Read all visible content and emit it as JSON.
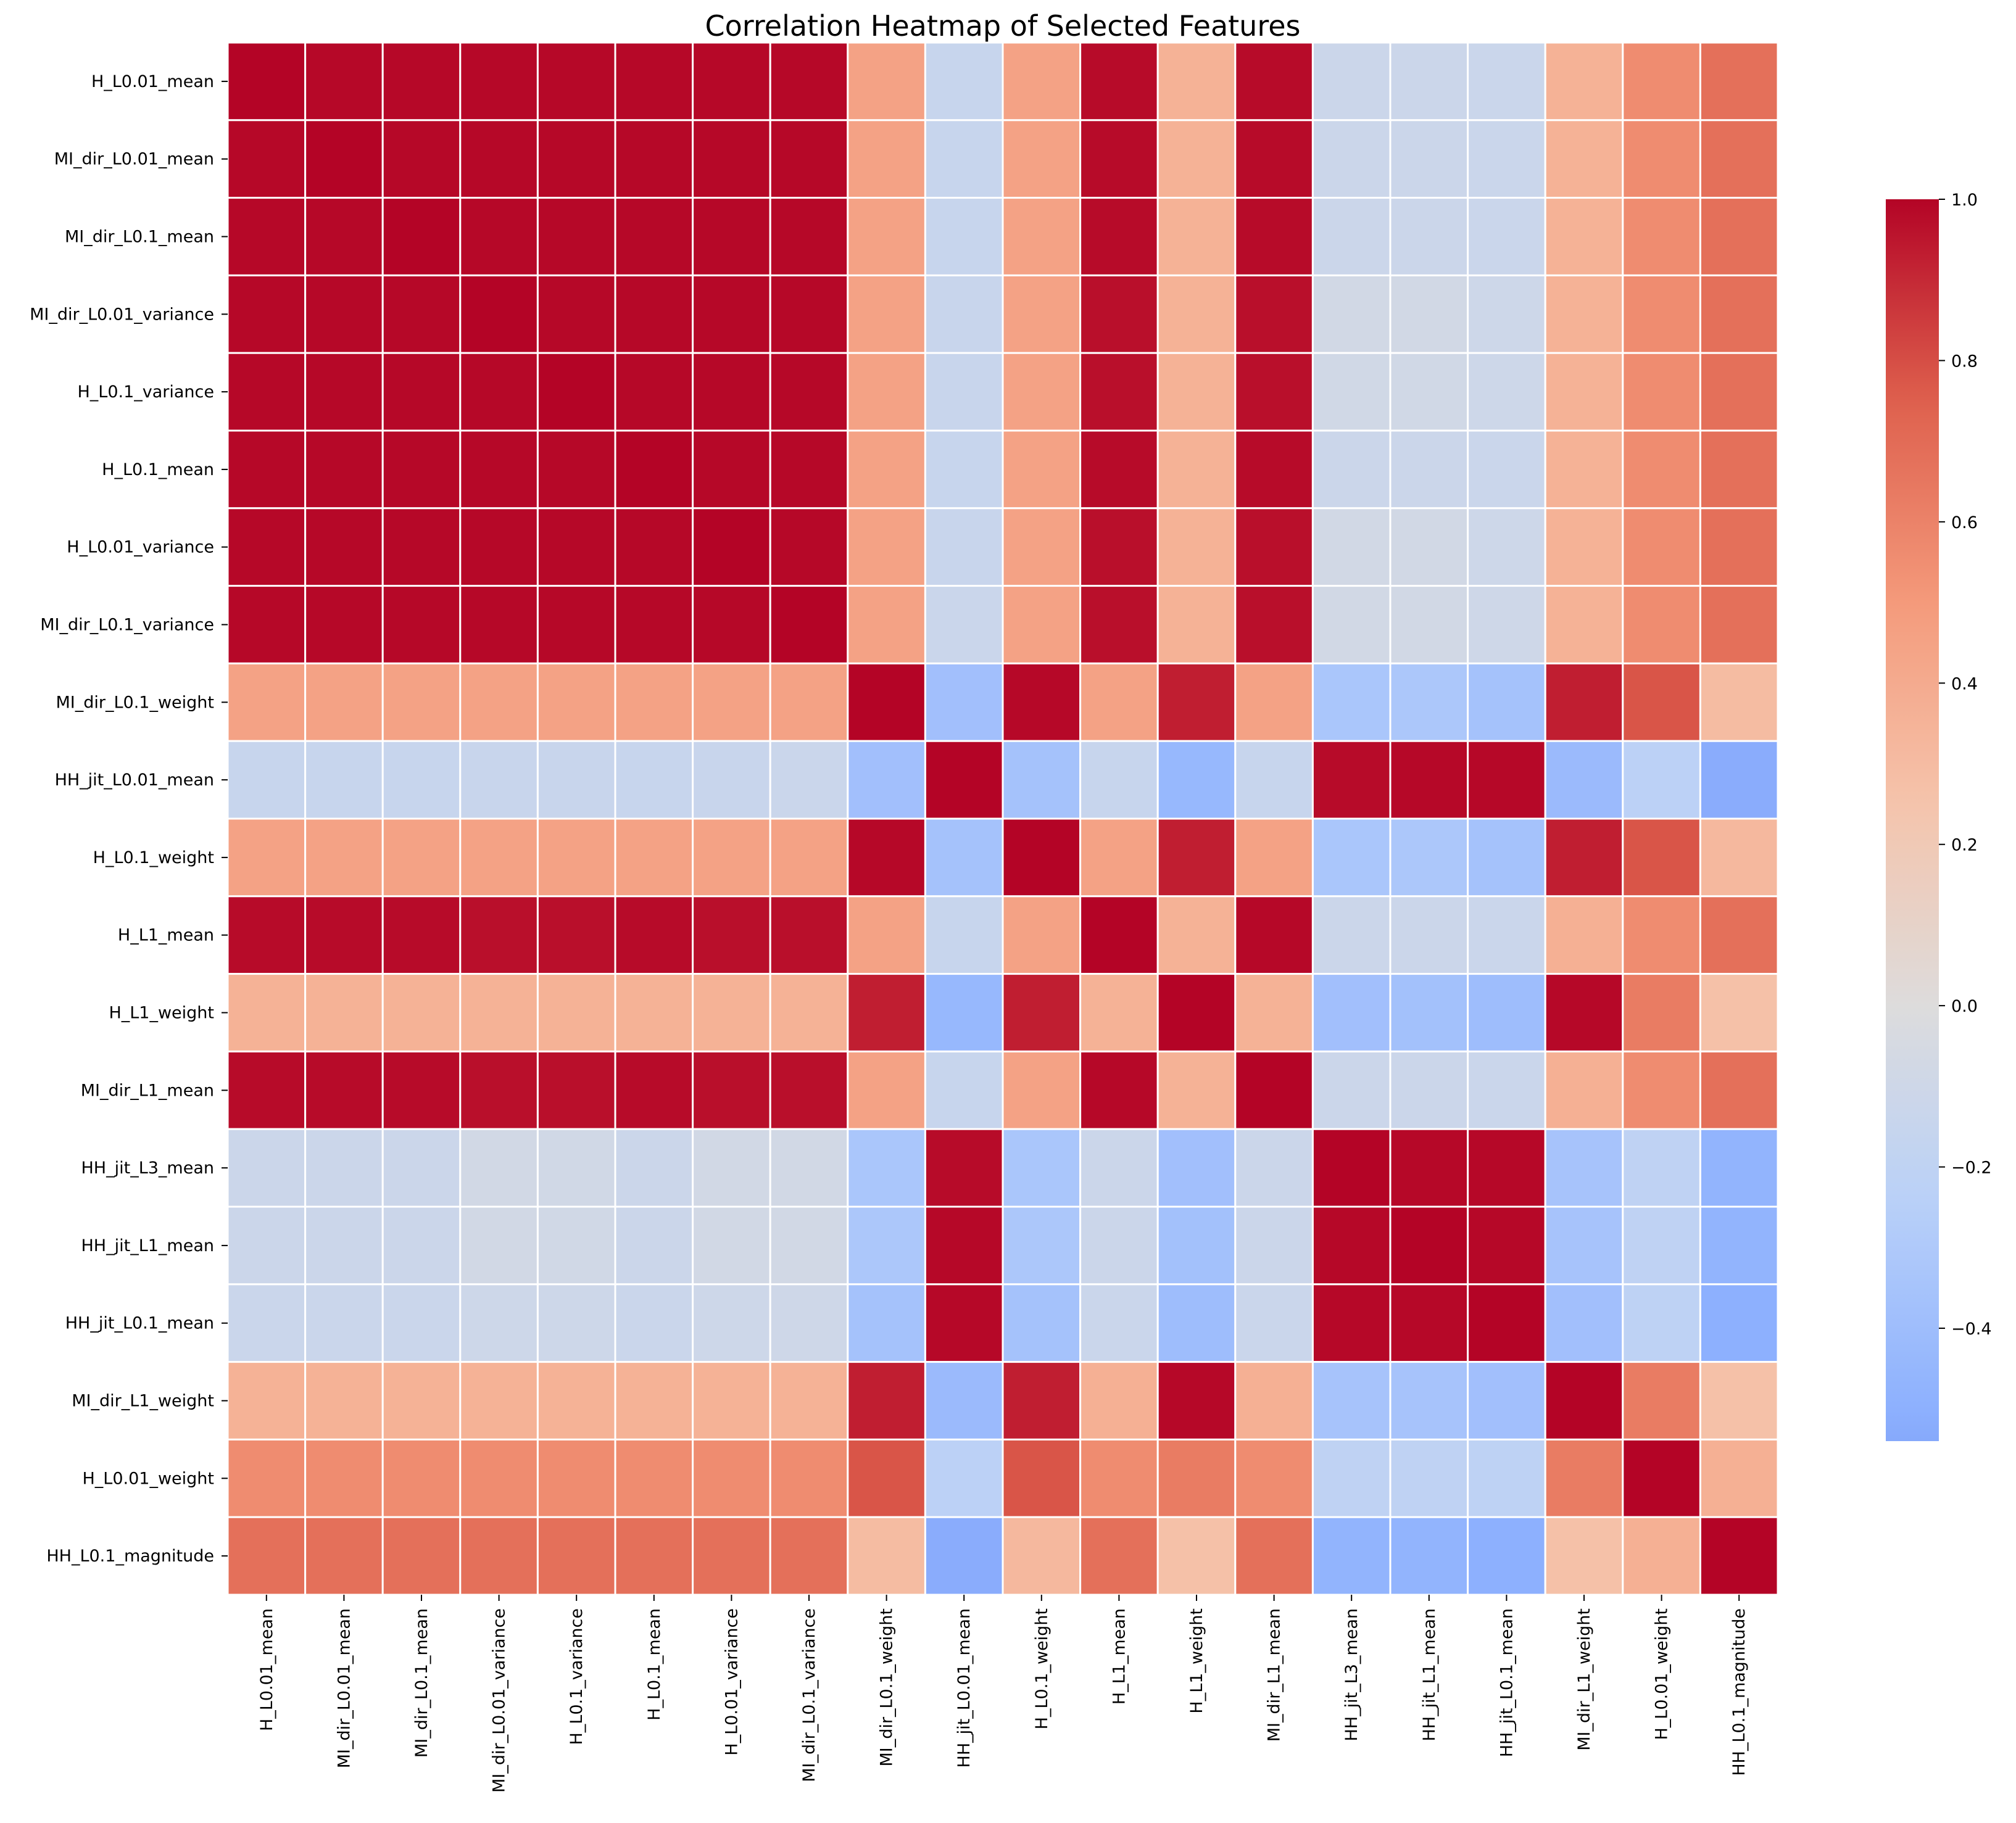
{
  "chart_data": {
    "type": "heatmap",
    "title": "Correlation Heatmap of Selected Features",
    "colormap": "coolwarm",
    "center": 0,
    "colorbar": {
      "range": [
        -0.54,
        1.0
      ],
      "ticks": [
        "1.0",
        "0.8",
        "0.6",
        "0.4",
        "0.2",
        "0.0",
        "−0.2",
        "−0.4"
      ],
      "tick_values": [
        1.0,
        0.8,
        0.6,
        0.4,
        0.2,
        0.0,
        -0.2,
        -0.4
      ]
    },
    "grid_lines_color": "#ffffff",
    "labels": [
      "H_L0.01_mean",
      "MI_dir_L0.01_mean",
      "MI_dir_L0.1_mean",
      "MI_dir_L0.01_variance",
      "H_L0.1_variance",
      "H_L0.1_mean",
      "H_L0.01_variance",
      "MI_dir_L0.1_variance",
      "MI_dir_L0.1_weight",
      "HH_jit_L0.01_mean",
      "H_L0.1_weight",
      "H_L1_mean",
      "H_L1_weight",
      "MI_dir_L1_mean",
      "HH_jit_L3_mean",
      "HH_jit_L1_mean",
      "HH_jit_L0.1_mean",
      "MI_dir_L1_weight",
      "H_L0.01_weight",
      "HH_L0.1_magnitude"
    ],
    "matrix": [
      [
        1.0,
        0.99,
        0.99,
        0.99,
        0.99,
        0.99,
        0.99,
        0.99,
        0.45,
        -0.15,
        0.45,
        0.98,
        0.36,
        0.98,
        -0.12,
        -0.12,
        -0.13,
        0.36,
        0.56,
        0.68
      ],
      [
        0.99,
        1.0,
        0.99,
        0.99,
        0.99,
        0.99,
        0.99,
        0.99,
        0.45,
        -0.15,
        0.45,
        0.98,
        0.36,
        0.98,
        -0.12,
        -0.12,
        -0.13,
        0.36,
        0.56,
        0.68
      ],
      [
        0.99,
        0.99,
        1.0,
        0.99,
        0.99,
        0.99,
        0.99,
        0.99,
        0.45,
        -0.15,
        0.45,
        0.98,
        0.36,
        0.98,
        -0.12,
        -0.12,
        -0.13,
        0.36,
        0.56,
        0.68
      ],
      [
        0.99,
        0.99,
        0.99,
        1.0,
        0.99,
        0.99,
        0.99,
        0.99,
        0.45,
        -0.14,
        0.45,
        0.97,
        0.36,
        0.97,
        -0.08,
        -0.08,
        -0.11,
        0.36,
        0.56,
        0.68
      ],
      [
        0.99,
        0.99,
        0.99,
        0.99,
        1.0,
        0.99,
        0.99,
        0.99,
        0.45,
        -0.14,
        0.45,
        0.97,
        0.36,
        0.97,
        -0.09,
        -0.09,
        -0.11,
        0.36,
        0.56,
        0.68
      ],
      [
        0.99,
        0.99,
        0.99,
        0.99,
        0.99,
        1.0,
        0.99,
        0.99,
        0.45,
        -0.15,
        0.45,
        0.98,
        0.36,
        0.98,
        -0.12,
        -0.12,
        -0.13,
        0.36,
        0.56,
        0.68
      ],
      [
        0.99,
        0.99,
        0.99,
        0.99,
        0.99,
        0.99,
        1.0,
        0.99,
        0.45,
        -0.14,
        0.45,
        0.97,
        0.36,
        0.97,
        -0.08,
        -0.08,
        -0.11,
        0.36,
        0.56,
        0.68
      ],
      [
        0.99,
        0.99,
        0.99,
        0.99,
        0.99,
        0.99,
        0.99,
        1.0,
        0.45,
        -0.13,
        0.45,
        0.97,
        0.36,
        0.97,
        -0.08,
        -0.08,
        -0.1,
        0.36,
        0.56,
        0.68
      ],
      [
        0.45,
        0.45,
        0.45,
        0.45,
        0.45,
        0.45,
        0.45,
        0.45,
        1.0,
        -0.38,
        0.99,
        0.45,
        0.93,
        0.45,
        -0.33,
        -0.32,
        -0.36,
        0.93,
        0.78,
        0.3
      ],
      [
        -0.15,
        -0.15,
        -0.15,
        -0.14,
        -0.14,
        -0.15,
        -0.14,
        -0.13,
        -0.38,
        1.0,
        -0.36,
        -0.15,
        -0.44,
        -0.15,
        0.98,
        0.99,
        0.99,
        -0.42,
        -0.22,
        -0.52
      ],
      [
        0.45,
        0.45,
        0.45,
        0.45,
        0.45,
        0.45,
        0.45,
        0.45,
        0.99,
        -0.36,
        1.0,
        0.45,
        0.93,
        0.45,
        -0.33,
        -0.32,
        -0.36,
        0.93,
        0.78,
        0.32
      ],
      [
        0.98,
        0.98,
        0.98,
        0.97,
        0.97,
        0.98,
        0.97,
        0.97,
        0.45,
        -0.15,
        0.45,
        1.0,
        0.36,
        0.99,
        -0.12,
        -0.12,
        -0.13,
        0.37,
        0.56,
        0.68
      ],
      [
        0.36,
        0.36,
        0.36,
        0.36,
        0.36,
        0.36,
        0.36,
        0.36,
        0.93,
        -0.44,
        0.93,
        0.36,
        1.0,
        0.36,
        -0.38,
        -0.37,
        -0.4,
        0.99,
        0.63,
        0.27
      ],
      [
        0.98,
        0.98,
        0.98,
        0.97,
        0.97,
        0.98,
        0.97,
        0.97,
        0.45,
        -0.15,
        0.45,
        0.99,
        0.36,
        1.0,
        -0.12,
        -0.12,
        -0.13,
        0.37,
        0.56,
        0.68
      ],
      [
        -0.12,
        -0.12,
        -0.12,
        -0.08,
        -0.09,
        -0.12,
        -0.08,
        -0.08,
        -0.33,
        0.98,
        -0.33,
        -0.12,
        -0.38,
        -0.12,
        1.0,
        0.99,
        0.99,
        -0.35,
        -0.2,
        -0.47
      ],
      [
        -0.12,
        -0.12,
        -0.12,
        -0.08,
        -0.09,
        -0.12,
        -0.08,
        -0.08,
        -0.32,
        0.99,
        -0.32,
        -0.12,
        -0.37,
        -0.12,
        0.99,
        1.0,
        0.99,
        -0.35,
        -0.2,
        -0.47
      ],
      [
        -0.13,
        -0.13,
        -0.13,
        -0.11,
        -0.11,
        -0.13,
        -0.11,
        -0.1,
        -0.36,
        0.99,
        -0.36,
        -0.13,
        -0.4,
        -0.13,
        0.99,
        0.99,
        1.0,
        -0.38,
        -0.21,
        -0.5
      ],
      [
        0.36,
        0.36,
        0.36,
        0.36,
        0.36,
        0.36,
        0.36,
        0.36,
        0.93,
        -0.42,
        0.93,
        0.37,
        0.99,
        0.37,
        -0.35,
        -0.35,
        -0.38,
        1.0,
        0.63,
        0.27
      ],
      [
        0.56,
        0.56,
        0.56,
        0.56,
        0.56,
        0.56,
        0.56,
        0.56,
        0.78,
        -0.22,
        0.78,
        0.56,
        0.63,
        0.56,
        -0.2,
        -0.2,
        -0.21,
        0.63,
        1.0,
        0.37
      ],
      [
        0.68,
        0.68,
        0.68,
        0.68,
        0.68,
        0.68,
        0.68,
        0.68,
        0.3,
        -0.52,
        0.32,
        0.68,
        0.27,
        0.68,
        -0.47,
        -0.47,
        -0.5,
        0.27,
        0.37,
        1.0
      ]
    ]
  }
}
